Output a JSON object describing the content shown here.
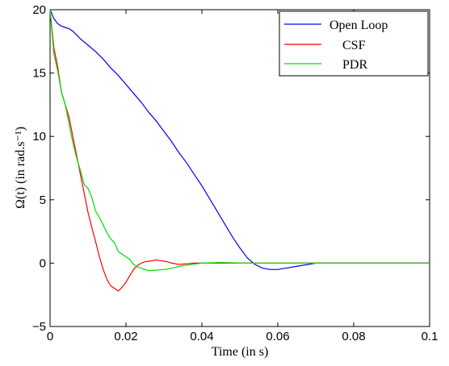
{
  "chart_data": {
    "type": "line",
    "title": "",
    "xlabel": "Time (in s)",
    "ylabel": "Ω(t) (in rad.s⁻¹)",
    "xlim": [
      0,
      0.1
    ],
    "ylim": [
      -5,
      20
    ],
    "xticks": [
      "0",
      "0.02",
      "0.04",
      "0.06",
      "0.08",
      "0.1"
    ],
    "yticks": [
      "−5",
      "0",
      "5",
      "10",
      "15",
      "20"
    ],
    "grid": false,
    "legend_position": "top-right",
    "series": [
      {
        "name": "Open Loop",
        "color": "#0000ff",
        "x": [
          0,
          0.001,
          0.002,
          0.003,
          0.004,
          0.005,
          0.006,
          0.007,
          0.008,
          0.01,
          0.012,
          0.014,
          0.016,
          0.018,
          0.02,
          0.022,
          0.024,
          0.026,
          0.028,
          0.03,
          0.032,
          0.034,
          0.036,
          0.038,
          0.04,
          0.042,
          0.044,
          0.046,
          0.048,
          0.05,
          0.052,
          0.054,
          0.056,
          0.058,
          0.06,
          0.062,
          0.064,
          0.066,
          0.068,
          0.07,
          0.075,
          0.08,
          0.085,
          0.09,
          0.095,
          0.1
        ],
        "y": [
          20,
          19.3,
          18.9,
          18.7,
          18.6,
          18.5,
          18.3,
          18.0,
          17.7,
          17.2,
          16.7,
          16.1,
          15.4,
          14.8,
          14.1,
          13.4,
          12.7,
          11.9,
          11.2,
          10.4,
          9.6,
          8.7,
          7.9,
          7.0,
          6.1,
          5.1,
          4.1,
          3.1,
          2.1,
          1.2,
          0.4,
          -0.1,
          -0.4,
          -0.5,
          -0.5,
          -0.4,
          -0.3,
          -0.2,
          -0.1,
          0.0,
          0.0,
          0.0,
          0.0,
          0.0,
          0.0,
          0.0
        ]
      },
      {
        "name": "CSF",
        "color": "#ff0000",
        "x": [
          0,
          0.001,
          0.002,
          0.003,
          0.004,
          0.005,
          0.006,
          0.007,
          0.008,
          0.009,
          0.01,
          0.011,
          0.012,
          0.013,
          0.014,
          0.015,
          0.016,
          0.017,
          0.018,
          0.019,
          0.02,
          0.021,
          0.022,
          0.023,
          0.024,
          0.025,
          0.026,
          0.027,
          0.028,
          0.029,
          0.03,
          0.031,
          0.032,
          0.034,
          0.036,
          0.038,
          0.04,
          0.045,
          0.05,
          0.06,
          0.07,
          0.08,
          0.1
        ],
        "y": [
          20,
          17.0,
          15.5,
          13.5,
          12.5,
          11.5,
          10.0,
          8.5,
          7.0,
          5.5,
          4.0,
          2.8,
          1.7,
          0.5,
          -0.5,
          -1.3,
          -1.8,
          -2.0,
          -2.2,
          -1.9,
          -1.5,
          -1.0,
          -0.5,
          -0.2,
          0.0,
          0.1,
          0.15,
          0.2,
          0.25,
          0.2,
          0.15,
          0.1,
          0.0,
          -0.1,
          -0.05,
          0.0,
          0.0,
          0.0,
          0.0,
          0.0,
          0.0,
          0.0,
          0.0
        ]
      },
      {
        "name": "PDR",
        "color": "#00dd00",
        "x": [
          0,
          0.001,
          0.002,
          0.003,
          0.004,
          0.005,
          0.006,
          0.007,
          0.008,
          0.009,
          0.01,
          0.011,
          0.012,
          0.013,
          0.014,
          0.015,
          0.016,
          0.017,
          0.018,
          0.019,
          0.02,
          0.021,
          0.022,
          0.023,
          0.024,
          0.025,
          0.026,
          0.028,
          0.03,
          0.032,
          0.035,
          0.04,
          0.045,
          0.05,
          0.06,
          0.07,
          0.08,
          0.1
        ],
        "y": [
          20,
          16.5,
          15.2,
          13.5,
          12.5,
          11.0,
          9.5,
          8.3,
          7.3,
          6.2,
          5.9,
          5.2,
          4.1,
          3.6,
          3.0,
          2.4,
          1.9,
          1.6,
          0.9,
          0.7,
          0.5,
          0.3,
          -0.1,
          -0.3,
          -0.4,
          -0.5,
          -0.6,
          -0.55,
          -0.5,
          -0.4,
          -0.2,
          0.0,
          0.05,
          0.0,
          0.0,
          0.0,
          0.0,
          0.0
        ]
      }
    ]
  }
}
